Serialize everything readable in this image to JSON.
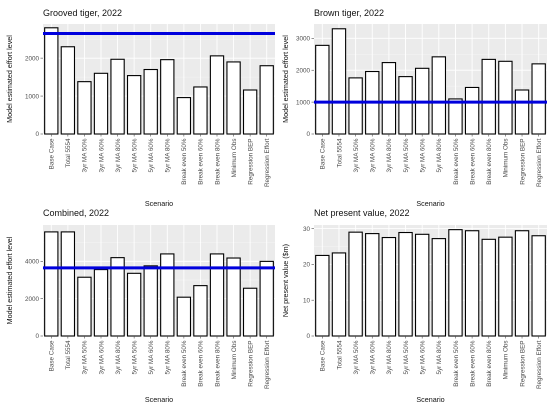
{
  "chart_data": [
    {
      "type": "bar",
      "title": "Grooved tiger, 2022",
      "xlabel": "Scenario",
      "ylabel": "Model estimated effort level",
      "ylim": [
        0,
        2900
      ],
      "yticks": [
        0,
        1000,
        2000
      ],
      "categories": [
        "Base Case",
        "Total 5554",
        "3yr MA 50%",
        "3yr MA 60%",
        "3yr MA 80%",
        "5yr MA 50%",
        "5yr MA 60%",
        "5yr MA 80%",
        "Break even 50%",
        "Break even 60%",
        "Break even 80%",
        "Minimum Obs",
        "Regression BEP",
        "Regression Effort"
      ],
      "values": [
        2800,
        2300,
        1380,
        1600,
        1970,
        1540,
        1700,
        1960,
        960,
        1240,
        2060,
        1900,
        1160,
        1800
      ],
      "reference_line": 2650,
      "reference_color": "#0000dd"
    },
    {
      "type": "bar",
      "title": "Brown tiger, 2022",
      "xlabel": "Scenario",
      "ylabel": "Model estimated effort level",
      "ylim": [
        0,
        3450
      ],
      "yticks": [
        0,
        1000,
        2000,
        3000
      ],
      "categories": [
        "Base Case",
        "Total 5554",
        "3yr MA 50%",
        "3yr MA 60%",
        "3yr MA 80%",
        "5yr MA 50%",
        "5yr MA 60%",
        "5yr MA 80%",
        "Break even 50%",
        "Break even 60%",
        "Break even 80%",
        "Minimum Obs",
        "Regression BEP",
        "Regression Effort"
      ],
      "values": [
        2780,
        3300,
        1760,
        1960,
        2240,
        1800,
        2060,
        2420,
        1100,
        1460,
        2340,
        2280,
        1380,
        2200
      ],
      "reference_line": 1000,
      "reference_color": "#0000dd"
    },
    {
      "type": "bar",
      "title": "Combined, 2022",
      "xlabel": "Scenario",
      "ylabel": "Model estimated effort level",
      "ylim": [
        0,
        5950
      ],
      "yticks": [
        0,
        2000,
        4000
      ],
      "categories": [
        "Base Case",
        "Total 5554",
        "3yr MA 50%",
        "3yr MA 60%",
        "3yr MA 80%",
        "5yr MA 50%",
        "5yr MA 60%",
        "5yr MA 80%",
        "Break even 50%",
        "Break even 60%",
        "Break even 80%",
        "Minimum Obs",
        "Regression BEP",
        "Regression Effort"
      ],
      "values": [
        5580,
        5580,
        3150,
        3560,
        4200,
        3360,
        3760,
        4400,
        2080,
        2700,
        4400,
        4180,
        2560,
        4000
      ],
      "reference_line": 3650,
      "reference_color": "#0000dd"
    },
    {
      "type": "bar",
      "title": "Net present value, 2022",
      "xlabel": "Scenario",
      "ylabel": "Net present value ($m)",
      "ylim": [
        0,
        31
      ],
      "yticks": [
        0,
        10,
        20,
        30
      ],
      "categories": [
        "Base Case",
        "Total 5554",
        "3yr MA 50%",
        "3yr MA 60%",
        "3yr MA 80%",
        "5yr MA 50%",
        "5yr MA 60%",
        "5yr MA 80%",
        "Break even 50%",
        "Break even 60%",
        "Break even 80%",
        "Minimum Obs",
        "Regression BEP",
        "Regression Effort"
      ],
      "values": [
        22.5,
        23.2,
        29.0,
        28.6,
        27.5,
        28.9,
        28.4,
        27.2,
        29.7,
        29.4,
        27.0,
        27.6,
        29.4,
        28.0
      ],
      "reference_line": null
    }
  ]
}
